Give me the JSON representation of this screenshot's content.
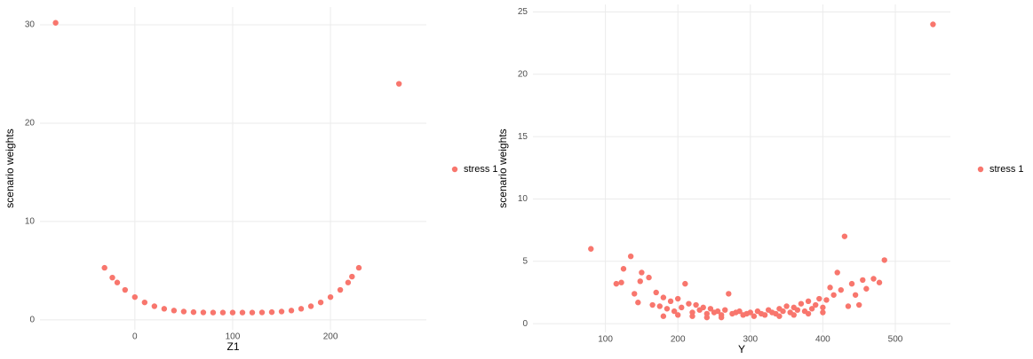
{
  "chart_data": [
    {
      "type": "scatter",
      "x_label": "Z1",
      "y_label": "scenario weights",
      "x": [
        -81,
        270,
        -31,
        229,
        -23,
        222,
        -18,
        -10,
        0,
        10,
        20,
        30,
        40,
        50,
        60,
        70,
        80,
        90,
        100,
        110,
        120,
        130,
        140,
        150,
        160,
        170,
        180,
        190,
        200,
        210,
        218
      ],
      "series": [
        {
          "name": "stress 1",
          "color": "#F8766D",
          "values": [
            30.2,
            24,
            5.3,
            5.3,
            4.3,
            4.4,
            3.8,
            3.05,
            2.32,
            1.78,
            1.39,
            1.13,
            0.95,
            0.85,
            0.79,
            0.76,
            0.75,
            0.75,
            0.75,
            0.75,
            0.75,
            0.76,
            0.79,
            0.85,
            0.95,
            1.13,
            1.39,
            1.78,
            2.32,
            3.05,
            3.8
          ]
        }
      ],
      "xlim": [
        -97,
        298
      ],
      "ylim": [
        -1,
        31.8
      ],
      "xticks": [
        0,
        100,
        200
      ],
      "yticks": [
        0,
        10,
        20,
        30
      ],
      "grid": true
    },
    {
      "type": "scatter",
      "x_label": "Y",
      "y_label": "scenario weights",
      "x": [
        552,
        80,
        430,
        135,
        485,
        125,
        150,
        420,
        148,
        160,
        115,
        122,
        470,
        478,
        455,
        460,
        140,
        145,
        210,
        270,
        440,
        445,
        450,
        410,
        425,
        170,
        175,
        180,
        185,
        190,
        195,
        200,
        205,
        215,
        220,
        225,
        230,
        235,
        240,
        245,
        250,
        255,
        260,
        265,
        275,
        280,
        285,
        290,
        295,
        300,
        305,
        310,
        315,
        320,
        325,
        330,
        335,
        340,
        345,
        350,
        355,
        360,
        365,
        370,
        375,
        380,
        385,
        390,
        395,
        400,
        405,
        415,
        180,
        200,
        220,
        240,
        260,
        340,
        360,
        380,
        400,
        165,
        435
      ],
      "series": [
        {
          "name": "stress 1",
          "color": "#F8766D",
          "values": [
            24,
            6,
            7,
            5.4,
            5.1,
            4.4,
            4.1,
            4.1,
            3.4,
            3.7,
            3.2,
            3.3,
            3.6,
            3.3,
            3.5,
            2.8,
            2.4,
            1.7,
            3.2,
            2.4,
            3.2,
            2.3,
            1.5,
            2.9,
            2.7,
            2.5,
            1.4,
            2.1,
            1.2,
            1.8,
            1.0,
            2.0,
            1.3,
            1.6,
            0.9,
            1.5,
            1.1,
            1.3,
            0.8,
            1.2,
            0.9,
            1.0,
            0.7,
            1.1,
            0.8,
            0.9,
            1.0,
            0.7,
            0.8,
            0.9,
            0.6,
            1.0,
            0.8,
            0.7,
            1.1,
            0.9,
            0.8,
            1.2,
            1.0,
            1.4,
            0.9,
            1.3,
            1.1,
            1.6,
            1.0,
            1.8,
            1.2,
            1.5,
            2.0,
            1.3,
            1.9,
            2.3,
            0.6,
            0.7,
            0.6,
            0.5,
            0.5,
            0.6,
            0.7,
            0.8,
            0.9,
            1.5,
            1.4
          ]
        }
      ],
      "xlim": [
        0,
        576
      ],
      "ylim": [
        -0.7,
        25.6
      ],
      "xticks": [
        100,
        200,
        300,
        400,
        500
      ],
      "yticks": [
        0,
        5,
        10,
        15,
        20,
        25
      ],
      "grid": true
    }
  ]
}
